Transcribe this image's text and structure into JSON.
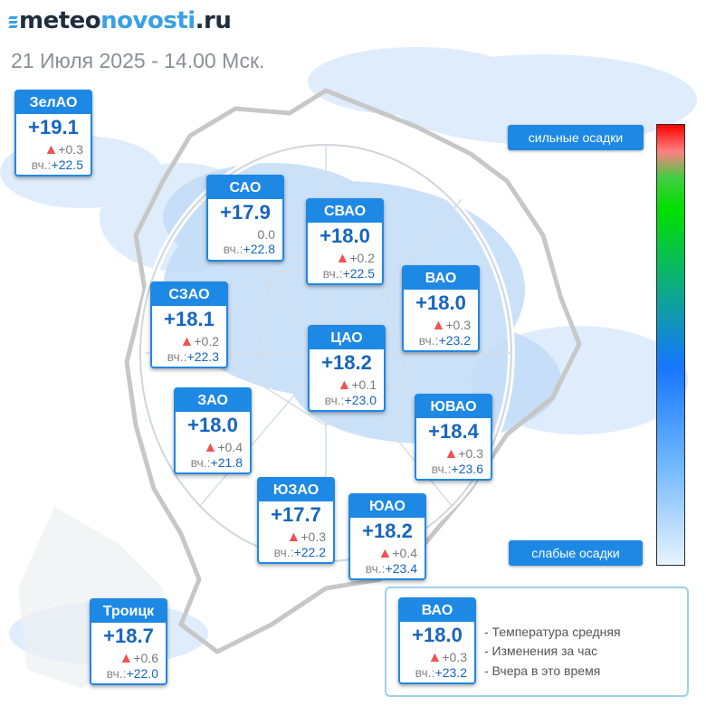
{
  "header": {
    "logo_dark1": "meteo",
    "logo_accent": "novosti",
    "logo_dark2": ".ru",
    "date": "21 Июля 2025 - 14.00 Мск."
  },
  "colors": {
    "accent": "#1e88e5",
    "temp": "#1565c0",
    "up_arrow": "#ef5350"
  },
  "districts": [
    {
      "name": "ЗелАО",
      "temp": "+19.1",
      "change": "+0.3",
      "yesterday_label": "вч.:",
      "yesterday": "+22.5",
      "trend": "up"
    },
    {
      "name": "САО",
      "temp": "+17.9",
      "change": "0.0",
      "yesterday_label": "вч.:",
      "yesterday": "+22.8",
      "trend": "none"
    },
    {
      "name": "СВАО",
      "temp": "+18.0",
      "change": "+0.2",
      "yesterday_label": "вч.:",
      "yesterday": "+22.5",
      "trend": "up"
    },
    {
      "name": "ВАО",
      "temp": "+18.0",
      "change": "+0.3",
      "yesterday_label": "вч.:",
      "yesterday": "+23.2",
      "trend": "up"
    },
    {
      "name": "СЗАО",
      "temp": "+18.1",
      "change": "+0.2",
      "yesterday_label": "вч.:",
      "yesterday": "+22.3",
      "trend": "up"
    },
    {
      "name": "ЦАО",
      "temp": "+18.2",
      "change": "+0.1",
      "yesterday_label": "вч.:",
      "yesterday": "+23.0",
      "trend": "up"
    },
    {
      "name": "ЗАО",
      "temp": "+18.0",
      "change": "+0.4",
      "yesterday_label": "вч.:",
      "yesterday": "+21.8",
      "trend": "up"
    },
    {
      "name": "ЮВАО",
      "temp": "+18.4",
      "change": "+0.3",
      "yesterday_label": "вч.:",
      "yesterday": "+23.6",
      "trend": "up"
    },
    {
      "name": "ЮЗАО",
      "temp": "+17.7",
      "change": "+0.3",
      "yesterday_label": "вч.:",
      "yesterday": "+22.2",
      "trend": "up"
    },
    {
      "name": "ЮАО",
      "temp": "+18.2",
      "change": "+0.4",
      "yesterday_label": "вч.:",
      "yesterday": "+23.4",
      "trend": "up"
    },
    {
      "name": "Троицк",
      "temp": "+18.7",
      "change": "+0.6",
      "yesterday_label": "вч.:",
      "yesterday": "+22.0",
      "trend": "up"
    }
  ],
  "scale": {
    "top_label": "сильные осадки",
    "bottom_label": "слабые осадки"
  },
  "legend": {
    "sample": {
      "name": "ВАО",
      "temp": "+18.0",
      "change": "+0.3",
      "yesterday_label": "вч.:",
      "yesterday": "+23.2",
      "trend": "up"
    },
    "lines": [
      "- Температура средняя",
      "- Изменения за час",
      "- Вчера в это время"
    ]
  }
}
